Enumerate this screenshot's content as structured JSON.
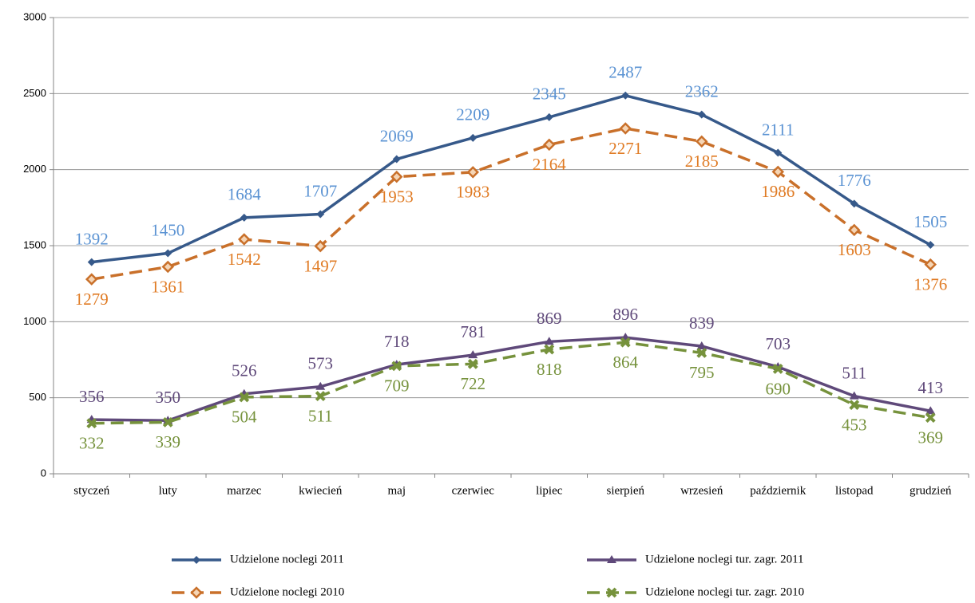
{
  "chart_data": {
    "type": "line",
    "categories": [
      "styczeń",
      "luty",
      "marzec",
      "kwiecień",
      "maj",
      "czerwiec",
      "lipiec",
      "sierpień",
      "wrzesień",
      "październik",
      "listopad",
      "grudzień"
    ],
    "series": [
      {
        "name": "Udzielone noclegi 2011",
        "color": "#36598a",
        "label_color": "#5b93d3",
        "marker": "diamond",
        "dash": false,
        "label_position": "above",
        "values": [
          1392,
          1450,
          1684,
          1707,
          2069,
          2209,
          2345,
          2487,
          2362,
          2111,
          1776,
          1505
        ]
      },
      {
        "name": "Udzielone noclegi 2010",
        "color": "#c9702a",
        "label_color": "#e07b24",
        "marker": "diamond-open",
        "dash": true,
        "label_position": "below",
        "values": [
          1279,
          1361,
          1542,
          1497,
          1953,
          1983,
          2164,
          2271,
          2185,
          1986,
          1603,
          1376
        ]
      },
      {
        "name": "Udzielone noclegi tur. zagr. 2011",
        "color": "#5f497a",
        "label_color": "#5f497a",
        "marker": "triangle",
        "dash": false,
        "label_position": "above",
        "values": [
          356,
          350,
          526,
          573,
          718,
          781,
          869,
          896,
          839,
          703,
          511,
          413
        ]
      },
      {
        "name": "Udzielone noclegi tur. zagr. 2010",
        "color": "#76923c",
        "label_color": "#76923c",
        "marker": "x",
        "dash": true,
        "label_position": "below",
        "values": [
          332,
          339,
          504,
          511,
          709,
          722,
          818,
          864,
          795,
          690,
          453,
          369
        ]
      }
    ],
    "ylim": [
      0,
      3000
    ],
    "yticks": [
      0,
      500,
      1000,
      1500,
      2000,
      2500,
      3000
    ],
    "grid": true,
    "legend": "bottom"
  }
}
